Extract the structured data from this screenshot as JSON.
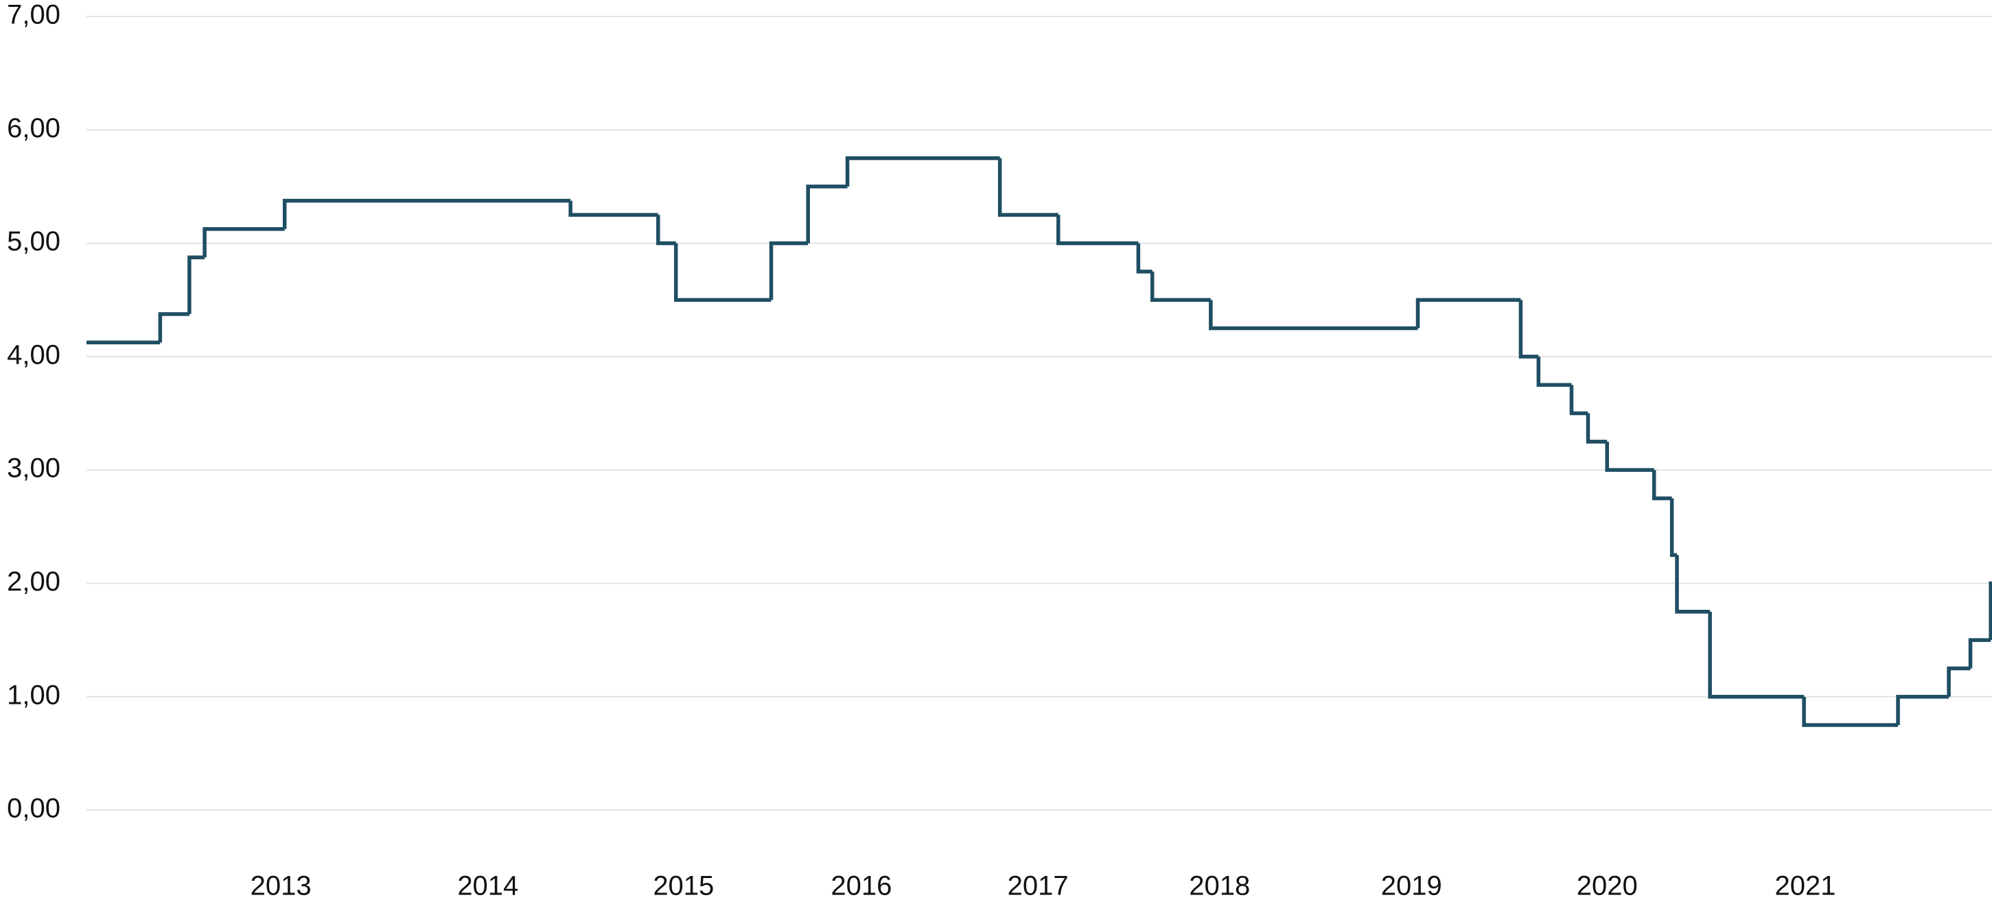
{
  "chart_data": {
    "type": "step",
    "x": [
      0,
      58,
      81,
      93,
      156,
      381,
      450,
      464,
      539,
      568,
      599,
      719,
      765,
      828,
      839,
      885,
      1048,
      1129,
      1143,
      1169,
      1182,
      1197,
      1234,
      1248,
      1252,
      1278,
      1352,
      1426,
      1466,
      1483,
      1499
    ],
    "values": [
      4.125,
      4.375,
      4.875,
      5.125,
      5.375,
      5.25,
      5.0,
      4.5,
      5.0,
      5.5,
      5.75,
      5.25,
      5.0,
      4.75,
      4.5,
      4.25,
      4.5,
      4.0,
      3.75,
      3.5,
      3.25,
      3.0,
      2.75,
      2.25,
      1.75,
      1.0,
      0.75,
      1.0,
      1.25,
      1.5,
      2.0
    ],
    "color": "#1f4e63",
    "xlim": [
      0,
      1500
    ],
    "xticks": [
      {
        "value": 153,
        "label": "2013"
      },
      {
        "value": 316,
        "label": "2014"
      },
      {
        "value": 470,
        "label": "2015"
      },
      {
        "value": 610,
        "label": "2016"
      },
      {
        "value": 749,
        "label": "2017"
      },
      {
        "value": 892,
        "label": "2018"
      },
      {
        "value": 1043,
        "label": "2019"
      },
      {
        "value": 1197,
        "label": "2020"
      },
      {
        "value": 1353,
        "label": "2021"
      }
    ],
    "ylim": [
      0,
      7
    ],
    "yticks": [
      {
        "value": 0,
        "label": "0,00"
      },
      {
        "value": 1,
        "label": "1,00"
      },
      {
        "value": 2,
        "label": "2,00"
      },
      {
        "value": 3,
        "label": "3,00"
      },
      {
        "value": 4,
        "label": "4,00"
      },
      {
        "value": 5,
        "label": "5,00"
      },
      {
        "value": 6,
        "label": "6,00"
      },
      {
        "value": 7,
        "label": "7,00"
      }
    ],
    "grid": true
  }
}
